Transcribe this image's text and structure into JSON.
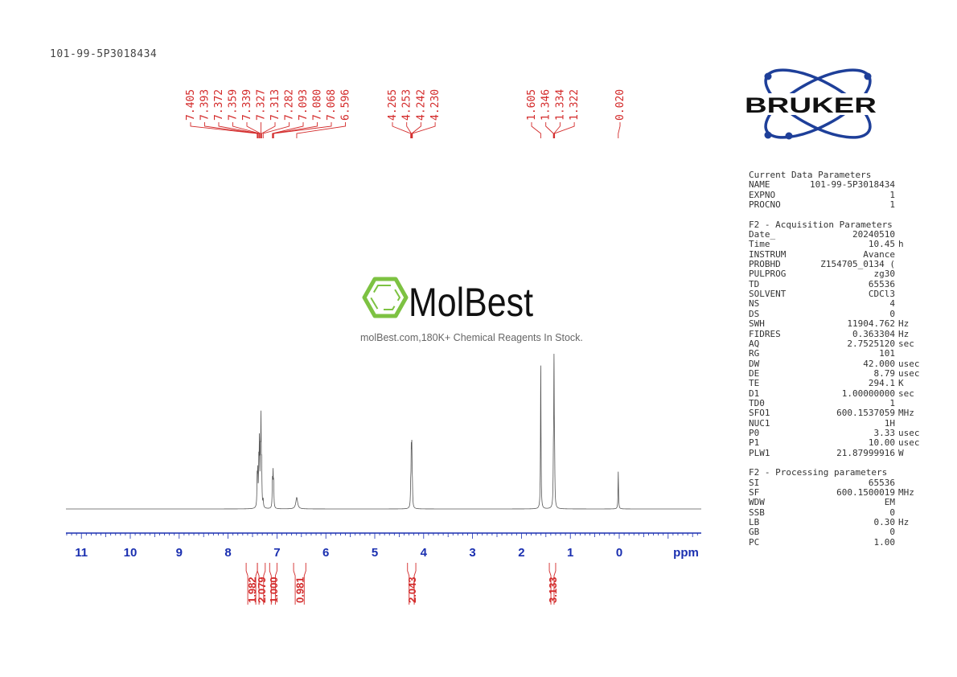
{
  "title": "101-99-5P3018434",
  "watermark": {
    "brand": "MolBest",
    "tagline": "molBest.com,180K+ Chemical Reagents In Stock.",
    "color": "#7dc242"
  },
  "logo": {
    "text": "BRUKER",
    "color": "#1e3f99"
  },
  "colors": {
    "spectrum": "#555555",
    "axis": "#1a2fb0",
    "annotation": "#d32a2a"
  },
  "parameters": {
    "sections": [
      {
        "heading": "Current Data Parameters",
        "rows": [
          {
            "label": "NAME",
            "value": "101-99-5P3018434",
            "unit": ""
          },
          {
            "label": "EXPNO",
            "value": "1",
            "unit": ""
          },
          {
            "label": "PROCNO",
            "value": "1",
            "unit": ""
          }
        ]
      },
      {
        "heading": "F2 - Acquisition Parameters",
        "rows": [
          {
            "label": "Date_",
            "value": "20240510",
            "unit": ""
          },
          {
            "label": "Time",
            "value": "10.45",
            "unit": "h"
          },
          {
            "label": "INSTRUM",
            "value": "Avance",
            "unit": ""
          },
          {
            "label": "PROBHD",
            "value": "Z154705_0134 (",
            "unit": ""
          },
          {
            "label": "PULPROG",
            "value": "zg30",
            "unit": ""
          },
          {
            "label": "TD",
            "value": "65536",
            "unit": ""
          },
          {
            "label": "SOLVENT",
            "value": "CDCl3",
            "unit": ""
          },
          {
            "label": "NS",
            "value": "4",
            "unit": ""
          },
          {
            "label": "DS",
            "value": "0",
            "unit": ""
          },
          {
            "label": "SWH",
            "value": "11904.762",
            "unit": "Hz"
          },
          {
            "label": "FIDRES",
            "value": "0.363304",
            "unit": "Hz"
          },
          {
            "label": "AQ",
            "value": "2.7525120",
            "unit": "sec"
          },
          {
            "label": "RG",
            "value": "101",
            "unit": ""
          },
          {
            "label": "DW",
            "value": "42.000",
            "unit": "usec"
          },
          {
            "label": "DE",
            "value": "8.79",
            "unit": "usec"
          },
          {
            "label": "TE",
            "value": "294.1",
            "unit": "K"
          },
          {
            "label": "D1",
            "value": "1.00000000",
            "unit": "sec"
          },
          {
            "label": "TD0",
            "value": "1",
            "unit": ""
          },
          {
            "label": "SFO1",
            "value": "600.1537059",
            "unit": "MHz"
          },
          {
            "label": "NUC1",
            "value": "1H",
            "unit": ""
          },
          {
            "label": "P0",
            "value": "3.33",
            "unit": "usec"
          },
          {
            "label": "P1",
            "value": "10.00",
            "unit": "usec"
          },
          {
            "label": "PLW1",
            "value": "21.87999916",
            "unit": "W"
          }
        ]
      },
      {
        "heading": "F2 - Processing parameters",
        "rows": [
          {
            "label": "SI",
            "value": "65536",
            "unit": ""
          },
          {
            "label": "SF",
            "value": "600.1500019",
            "unit": "MHz"
          },
          {
            "label": "WDW",
            "value": "EM",
            "unit": ""
          },
          {
            "label": "SSB",
            "value": "0",
            "unit": ""
          },
          {
            "label": "LB",
            "value": "0.30",
            "unit": "Hz"
          },
          {
            "label": "GB",
            "value": "0",
            "unit": ""
          },
          {
            "label": "PC",
            "value": "1.00",
            "unit": ""
          }
        ]
      }
    ]
  },
  "chart_data": {
    "type": "line",
    "xlabel": "ppm",
    "xlim": [
      11.3,
      -1.7
    ],
    "x_reversed": true,
    "xticks": [
      "11",
      "10",
      "9",
      "8",
      "7",
      "6",
      "5",
      "4",
      "3",
      "2",
      "1",
      "0"
    ],
    "grid": false,
    "peak_labels": [
      {
        "group": [
          "7.405",
          "7.393",
          "7.372",
          "7.359",
          "7.339",
          "7.327",
          "7.313",
          "7.282",
          "7.093",
          "7.080",
          "7.068",
          "6.596"
        ]
      },
      {
        "group": [
          "4.265",
          "4.253",
          "4.242",
          "4.230"
        ]
      },
      {
        "group": [
          "1.605",
          "1.346",
          "1.334",
          "1.322"
        ]
      },
      {
        "group": [
          "0.020"
        ]
      }
    ],
    "peaks": [
      {
        "ppm": 7.405,
        "intensity": 0.2
      },
      {
        "ppm": 7.393,
        "intensity": 0.22
      },
      {
        "ppm": 7.372,
        "intensity": 0.28
      },
      {
        "ppm": 7.359,
        "intensity": 0.42
      },
      {
        "ppm": 7.339,
        "intensity": 0.3
      },
      {
        "ppm": 7.327,
        "intensity": 0.56
      },
      {
        "ppm": 7.313,
        "intensity": 0.26
      },
      {
        "ppm": 7.282,
        "intensity": 0.05
      },
      {
        "ppm": 7.093,
        "intensity": 0.18
      },
      {
        "ppm": 7.08,
        "intensity": 0.22
      },
      {
        "ppm": 7.068,
        "intensity": 0.16
      },
      {
        "ppm": 6.596,
        "intensity": 0.08,
        "broad": true
      },
      {
        "ppm": 4.265,
        "intensity": 0.12
      },
      {
        "ppm": 4.253,
        "intensity": 0.35
      },
      {
        "ppm": 4.242,
        "intensity": 0.37
      },
      {
        "ppm": 4.23,
        "intensity": 0.12
      },
      {
        "ppm": 1.605,
        "intensity": 1.0
      },
      {
        "ppm": 1.346,
        "intensity": 0.28
      },
      {
        "ppm": 1.334,
        "intensity": 0.97
      },
      {
        "ppm": 1.322,
        "intensity": 0.28
      },
      {
        "ppm": 0.02,
        "intensity": 0.26
      }
    ],
    "integrals": [
      {
        "value": "1.982",
        "from": 7.63,
        "to": 7.4
      },
      {
        "value": "2.079",
        "from": 7.4,
        "to": 7.24
      },
      {
        "value": "1.000",
        "from": 7.15,
        "to": 7.0
      },
      {
        "value": "0.981",
        "from": 6.66,
        "to": 6.41
      },
      {
        "value": "2.043",
        "from": 4.33,
        "to": 4.16
      },
      {
        "value": "3.133",
        "from": 1.43,
        "to": 1.3
      }
    ]
  }
}
